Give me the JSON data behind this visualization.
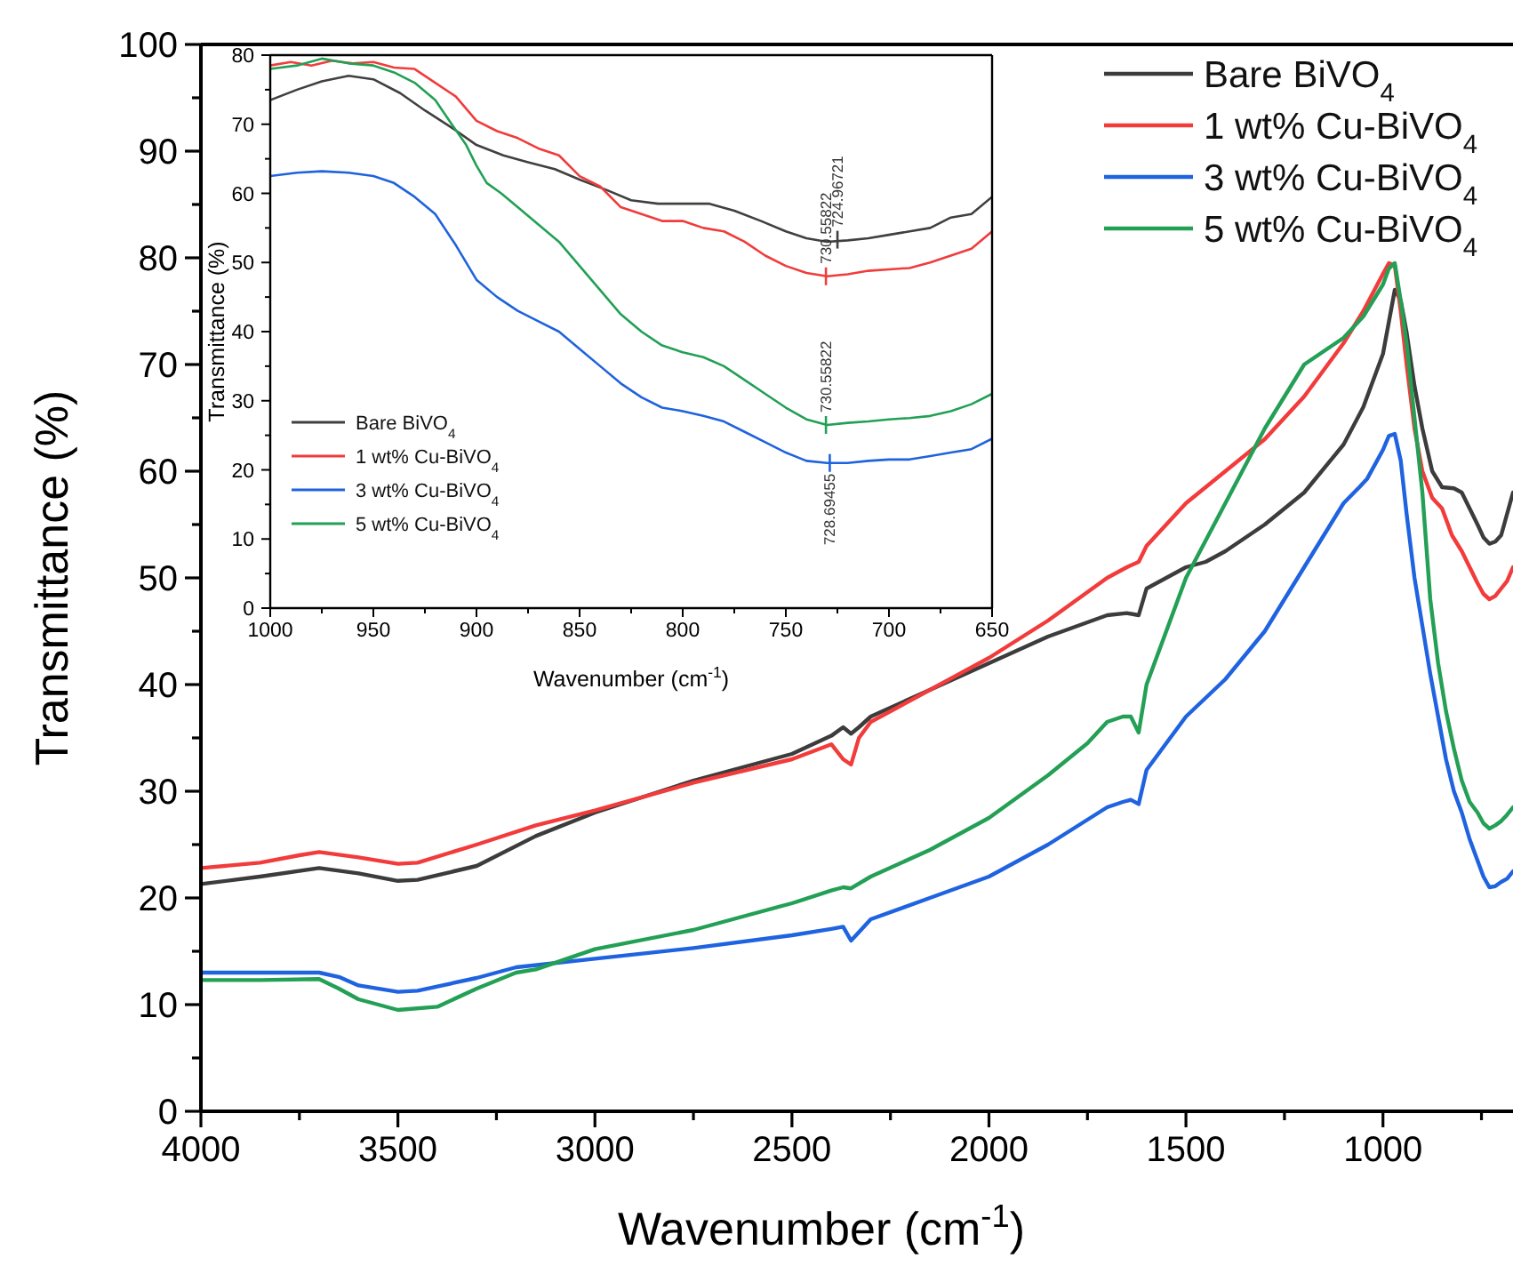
{
  "chart_data": [
    {
      "type": "line",
      "xlabel": "Wavenumber (cm$^{-1}$)",
      "ylabel": "Transmittance (%)",
      "xlim": [
        4000,
        670
      ],
      "ylim": [
        0,
        100
      ],
      "xticks": [
        4000,
        {
          "value": 3750,
          "label": null
        },
        3500,
        {
          "value": 3250,
          "label": null
        },
        3000,
        {
          "value": 2750,
          "label": null
        },
        2500,
        {
          "value": 2250,
          "label": null
        },
        2000,
        {
          "value": 1750,
          "label": null
        },
        1500,
        {
          "value": 1250,
          "label": null
        },
        1000,
        {
          "value": 750,
          "label": null
        }
      ],
      "yticks": [
        0,
        {
          "value": 5,
          "label": null
        },
        10,
        {
          "value": 15,
          "label": null
        },
        20,
        {
          "value": 25,
          "label": null
        },
        30,
        {
          "value": 35,
          "label": null
        },
        40,
        {
          "value": 45,
          "label": null
        },
        50,
        {
          "value": 55,
          "label": null
        },
        60,
        {
          "value": 65,
          "label": null
        },
        70,
        {
          "value": 75,
          "label": null
        },
        80,
        {
          "value": 85,
          "label": null
        },
        90,
        {
          "value": 95,
          "label": null
        },
        100
      ],
      "legend": "top right",
      "line_style": "solid",
      "marker": "none",
      "series": [
        {
          "name": "Bare BiVO$_{4}$",
          "color": "#3c3c3c",
          "x": [
            4000,
            3850,
            3700,
            3600,
            3500,
            3450,
            3300,
            3150,
            3000,
            2750,
            2500,
            2400,
            2370,
            2350,
            2330,
            2300,
            2150,
            2000,
            1850,
            1700,
            1650,
            1620,
            1600,
            1500,
            1450,
            1400,
            1300,
            1200,
            1100,
            1050,
            1000,
            985,
            970,
            955,
            940,
            920,
            900,
            875,
            850,
            820,
            800,
            780,
            760,
            745,
            730,
            715,
            700,
            685,
            670
          ],
          "values": [
            21.3,
            22,
            22.8,
            22.3,
            21.6,
            21.7,
            23,
            25.8,
            28,
            31,
            33.5,
            35.2,
            36,
            35.4,
            36,
            37,
            39.5,
            42,
            44.5,
            46.5,
            46.7,
            46.5,
            49,
            51,
            51.5,
            52.5,
            55,
            58,
            62.5,
            66,
            71,
            74,
            77,
            76,
            73,
            68,
            64,
            60,
            58.5,
            58.4,
            58,
            56.5,
            55,
            53.8,
            53.2,
            53.4,
            54,
            56,
            58
          ]
        },
        {
          "name": "1 wt% Cu-BiVO$_{4}$",
          "color": "#f23b3b",
          "x": [
            4000,
            3850,
            3750,
            3700,
            3600,
            3500,
            3450,
            3300,
            3150,
            3000,
            2750,
            2500,
            2400,
            2370,
            2350,
            2330,
            2300,
            2150,
            2000,
            1850,
            1700,
            1650,
            1620,
            1600,
            1500,
            1400,
            1300,
            1200,
            1100,
            1050,
            1000,
            985,
            970,
            955,
            940,
            920,
            900,
            875,
            850,
            825,
            800,
            780,
            760,
            745,
            730,
            715,
            700,
            685,
            670
          ],
          "values": [
            22.8,
            23.3,
            24,
            24.3,
            23.8,
            23.2,
            23.3,
            25,
            26.8,
            28.2,
            30.8,
            33,
            34.4,
            33,
            32.5,
            35,
            36.5,
            39.5,
            42.5,
            46,
            50,
            51,
            51.5,
            53,
            57,
            60,
            63,
            67,
            72,
            75,
            78.5,
            79.5,
            79.3,
            75,
            70,
            64,
            60,
            57.5,
            56.5,
            54,
            52.5,
            51,
            49.5,
            48.5,
            48,
            48.3,
            49,
            49.7,
            51
          ]
        },
        {
          "name": "3 wt% Cu-BiVO$_{4}$",
          "color": "#1f63e0",
          "x": [
            4000,
            3850,
            3700,
            3650,
            3600,
            3500,
            3450,
            3300,
            3200,
            3000,
            2750,
            2500,
            2400,
            2370,
            2350,
            2330,
            2300,
            2150,
            2000,
            1850,
            1700,
            1660,
            1640,
            1620,
            1600,
            1500,
            1400,
            1300,
            1200,
            1100,
            1060,
            1040,
            1000,
            985,
            970,
            955,
            940,
            920,
            900,
            880,
            860,
            840,
            820,
            800,
            780,
            760,
            745,
            730,
            715,
            700,
            685,
            670
          ],
          "values": [
            13,
            13,
            13,
            12.6,
            11.8,
            11.2,
            11.3,
            12.5,
            13.5,
            14.3,
            15.3,
            16.5,
            17.1,
            17.3,
            16,
            16.8,
            18,
            20,
            22,
            25,
            28.5,
            29,
            29.2,
            28.8,
            32,
            37,
            40.5,
            45,
            51,
            57,
            58.5,
            59.3,
            62,
            63.3,
            63.5,
            61,
            56,
            50,
            45.5,
            41,
            37,
            33,
            30,
            28,
            25.5,
            23.5,
            22,
            21,
            21.1,
            21.5,
            21.8,
            22.5
          ]
        },
        {
          "name": "5 wt% Cu-BiVO$_{4}$",
          "color": "#23a055",
          "x": [
            4000,
            3850,
            3700,
            3650,
            3600,
            3500,
            3400,
            3300,
            3200,
            3150,
            3000,
            2750,
            2500,
            2400,
            2370,
            2350,
            2300,
            2150,
            2000,
            1850,
            1750,
            1700,
            1660,
            1640,
            1620,
            1600,
            1500,
            1400,
            1300,
            1200,
            1100,
            1050,
            1000,
            985,
            970,
            955,
            940,
            920,
            900,
            880,
            860,
            840,
            820,
            800,
            780,
            760,
            745,
            730,
            715,
            700,
            685,
            670
          ],
          "values": [
            12.3,
            12.3,
            12.4,
            11.5,
            10.5,
            9.5,
            9.8,
            11.5,
            13,
            13.3,
            15.2,
            17,
            19.5,
            20.7,
            21,
            20.9,
            22,
            24.5,
            27.5,
            31.5,
            34.5,
            36.5,
            37,
            37,
            35.5,
            40,
            50,
            57,
            64,
            70,
            72.5,
            74.5,
            77.5,
            79,
            79.5,
            76,
            72,
            65,
            58,
            48,
            42,
            37.5,
            34,
            31,
            29,
            28,
            27,
            26.5,
            26.8,
            27.2,
            27.8,
            28.5
          ]
        }
      ]
    },
    {
      "type": "line",
      "xlabel": "Wavenumber (cm$^{-1}$)",
      "ylabel": "Transmittance (%)",
      "xlim": [
        1000,
        650
      ],
      "ylim": [
        0,
        80
      ],
      "xticks": [
        1000,
        {
          "value": 975,
          "label": null
        },
        950,
        {
          "value": 925,
          "label": null
        },
        900,
        {
          "value": 875,
          "label": null
        },
        850,
        {
          "value": 825,
          "label": null
        },
        800,
        {
          "value": 775,
          "label": null
        },
        750,
        {
          "value": 725,
          "label": null
        },
        700,
        {
          "value": 675,
          "label": null
        },
        650
      ],
      "yticks": [
        0,
        {
          "value": 5,
          "label": null
        },
        10,
        {
          "value": 15,
          "label": null
        },
        20,
        {
          "value": 25,
          "label": null
        },
        30,
        {
          "value": 35,
          "label": null
        },
        40,
        {
          "value": 45,
          "label": null
        },
        50,
        {
          "value": 55,
          "label": null
        },
        60,
        {
          "value": 65,
          "label": null
        },
        70,
        {
          "value": 75,
          "label": null
        },
        80
      ],
      "legend": "bottom left",
      "line_style": "solid",
      "marker": "none",
      "annotations": [
        {
          "text": "730.55822",
          "x": 730.55822,
          "y": 48
        },
        {
          "text": "724.96721",
          "x": 724.96721,
          "y": 53.3
        },
        {
          "text": "730.55822",
          "x": 730.55822,
          "y": 26.5
        },
        {
          "text": "728.69455",
          "x": 728.69455,
          "y": 21
        }
      ],
      "series": [
        {
          "name": "Bare BiVO$_{4}$",
          "color": "#404040",
          "x": [
            1000,
            987,
            975,
            962,
            950,
            937,
            925,
            912,
            900,
            887,
            875,
            862,
            850,
            837,
            825,
            812,
            800,
            787,
            775,
            762,
            750,
            740,
            730,
            720,
            710,
            700,
            690,
            680,
            670,
            660,
            650
          ],
          "values": [
            73.5,
            75,
            76.2,
            77,
            76.5,
            74.5,
            72,
            69.5,
            67,
            65.5,
            64.5,
            63.5,
            62,
            60.5,
            59,
            58.5,
            58.5,
            58.5,
            57.5,
            56,
            54.5,
            53.5,
            53,
            53.2,
            53.5,
            54,
            54.5,
            55,
            56.5,
            57,
            59.5
          ]
        },
        {
          "name": "1 wt% Cu-BiVO$_{4}$",
          "color": "#f03c3c",
          "x": [
            1000,
            990,
            980,
            970,
            960,
            950,
            940,
            930,
            920,
            910,
            900,
            890,
            880,
            870,
            860,
            850,
            840,
            830,
            820,
            810,
            800,
            790,
            780,
            770,
            760,
            750,
            740,
            730,
            720,
            710,
            700,
            690,
            680,
            670,
            660,
            650
          ],
          "values": [
            78.5,
            79,
            78.5,
            79.2,
            78.8,
            79,
            78.2,
            78,
            76,
            74,
            70.5,
            69,
            68,
            66.5,
            65.5,
            62.5,
            61,
            58,
            57,
            56,
            56,
            55,
            54.5,
            53,
            51,
            49.5,
            48.5,
            48,
            48.3,
            48.8,
            49,
            49.2,
            50,
            51,
            52,
            54.5
          ]
        },
        {
          "name": "3 wt% Cu-BiVO$_{4}$",
          "color": "#1f63dc",
          "x": [
            1000,
            987,
            975,
            962,
            950,
            940,
            930,
            920,
            910,
            900,
            890,
            880,
            870,
            860,
            850,
            840,
            830,
            820,
            810,
            800,
            790,
            780,
            770,
            760,
            750,
            740,
            730,
            720,
            710,
            700,
            690,
            680,
            670,
            660,
            650
          ],
          "values": [
            62.5,
            63,
            63.2,
            63,
            62.5,
            61.5,
            59.5,
            57,
            52.5,
            47.5,
            45,
            43,
            41.5,
            40,
            37.5,
            35,
            32.5,
            30.5,
            29,
            28.5,
            27.8,
            27,
            25.5,
            24,
            22.5,
            21.3,
            21,
            21,
            21.3,
            21.5,
            21.5,
            22,
            22.5,
            23,
            24.5
          ]
        },
        {
          "name": "5 wt% Cu-BiVO$_{4}$",
          "color": "#22a055",
          "x": [
            1000,
            987,
            975,
            962,
            950,
            940,
            930,
            920,
            912,
            905,
            900,
            895,
            888,
            880,
            870,
            860,
            850,
            840,
            830,
            820,
            810,
            800,
            790,
            780,
            770,
            760,
            750,
            740,
            730,
            720,
            710,
            700,
            690,
            680,
            670,
            660,
            650
          ],
          "values": [
            78,
            78.5,
            79.5,
            78.8,
            78.5,
            77.5,
            76,
            73.5,
            70,
            67,
            64,
            61.5,
            60,
            58,
            55.5,
            53,
            49.5,
            46,
            42.5,
            40,
            38,
            37,
            36.3,
            35,
            33,
            31,
            29,
            27.3,
            26.5,
            26.8,
            27,
            27.3,
            27.5,
            27.8,
            28.5,
            29.5,
            31
          ]
        }
      ]
    }
  ]
}
